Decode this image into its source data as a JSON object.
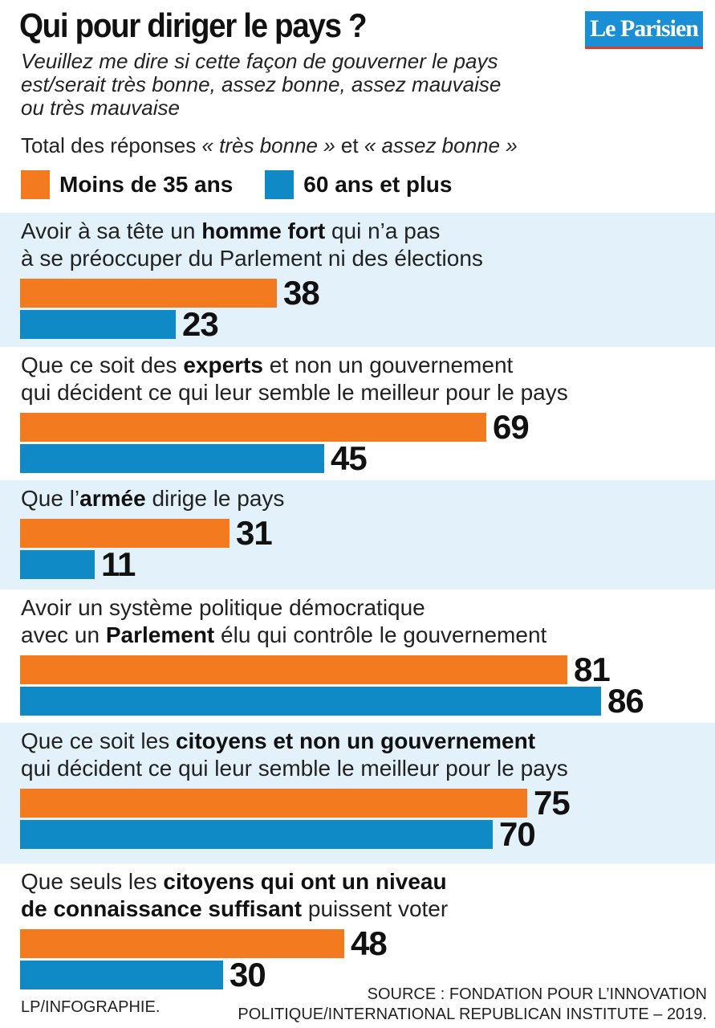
{
  "title": "Qui pour diriger le pays ?",
  "logo": "Le Parisien",
  "question": [
    "Veuillez me dire si cette façon de gouverner le pays",
    "est/serait très bonne, assez bonne, assez mauvaise",
    "ou très mauvaise"
  ],
  "note": {
    "prefix": "Total des réponses ",
    "part1": "« très bonne »",
    "middle": " et ",
    "part2": "« assez bonne »"
  },
  "colors": {
    "orange": "#f47a20",
    "blue": "#0f8ac7",
    "panel_bg": "#e3f1fa",
    "logo_bg": "#1a8fd6"
  },
  "chart_data": {
    "type": "bar",
    "orientation": "horizontal",
    "series": [
      {
        "name": "Moins de 35 ans",
        "color": "#f47a20",
        "values": [
          38,
          69,
          31,
          81,
          75,
          48
        ]
      },
      {
        "name": "60 ans et plus",
        "color": "#0f8ac7",
        "values": [
          23,
          45,
          11,
          86,
          70,
          30
        ]
      }
    ],
    "categories": [
      {
        "lines": [
          [
            {
              "t": "Avoir à sa tête un "
            },
            {
              "t": "homme fort",
              "b": true
            },
            {
              "t": " qui n’a pas"
            }
          ],
          [
            {
              "t": "à se préoccuper du Parlement ni des élections"
            }
          ]
        ]
      },
      {
        "lines": [
          [
            {
              "t": "Que ce soit des "
            },
            {
              "t": "experts",
              "b": true
            },
            {
              "t": " et non un gouvernement"
            }
          ],
          [
            {
              "t": "qui décident ce qui leur semble le meilleur pour le pays"
            }
          ]
        ]
      },
      {
        "lines": [
          [
            {
              "t": "Que l’"
            },
            {
              "t": "armée",
              "b": true
            },
            {
              "t": " dirige le pays"
            }
          ]
        ]
      },
      {
        "lines": [
          [
            {
              "t": "Avoir un système politique démocratique"
            }
          ],
          [
            {
              "t": "avec un "
            },
            {
              "t": "Parlement",
              "b": true
            },
            {
              "t": " élu qui contrôle le gouvernement"
            }
          ]
        ]
      },
      {
        "lines": [
          [
            {
              "t": "Que ce soit les "
            },
            {
              "t": "citoyens et non un gouvernement",
              "b": true
            }
          ],
          [
            {
              "t": "qui décident ce qui leur semble le meilleur pour le pays"
            }
          ]
        ]
      },
      {
        "lines": [
          [
            {
              "t": "Que seuls les "
            },
            {
              "t": "citoyens qui ont un niveau",
              "b": true
            }
          ],
          [
            {
              "t": "de connaissance suffisant",
              "b": true
            },
            {
              "t": " puissent voter"
            }
          ]
        ]
      }
    ],
    "xlim": [
      0,
      100
    ],
    "grid": false,
    "legend_position": "top-left"
  },
  "credit": "LP/INFOGRAPHIE.",
  "source": [
    "SOURCE : FONDATION POUR L’INNOVATION",
    "POLITIQUE/INTERNATIONAL REPUBLICAN INSTITUTE – 2019."
  ]
}
